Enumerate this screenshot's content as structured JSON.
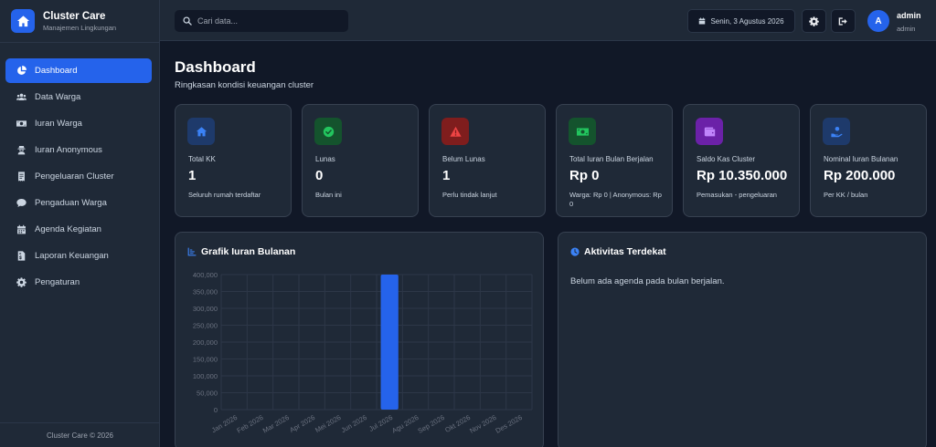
{
  "brand": {
    "name": "Cluster Care",
    "subtitle": "Manajemen Lingkungan"
  },
  "sidebar": {
    "items": [
      {
        "label": "Dashboard",
        "icon": "chart-pie-icon"
      },
      {
        "label": "Data Warga",
        "icon": "users-icon"
      },
      {
        "label": "Iuran Warga",
        "icon": "money-bill-icon"
      },
      {
        "label": "Iuran Anonymous",
        "icon": "user-secret-icon"
      },
      {
        "label": "Pengeluaran Cluster",
        "icon": "receipt-icon"
      },
      {
        "label": "Pengaduan Warga",
        "icon": "comment-icon"
      },
      {
        "label": "Agenda Kegiatan",
        "icon": "calendar-icon"
      },
      {
        "label": "Laporan Keuangan",
        "icon": "file-invoice-icon"
      },
      {
        "label": "Pengaturan",
        "icon": "cog-icon"
      }
    ],
    "active_index": 0,
    "footer": "Cluster Care © 2026"
  },
  "topbar": {
    "search_placeholder": "Cari data...",
    "date": "Senin, 3 Agustus 2026",
    "user_initial": "A",
    "user_name": "admin",
    "user_role": "admin"
  },
  "page": {
    "title": "Dashboard",
    "subtitle": "Ringkasan kondisi keuangan cluster"
  },
  "cards": [
    {
      "label": "Total KK",
      "value": "1",
      "note": "Seluruh rumah terdaftar",
      "icon": "home-icon",
      "accent": "#2563eb",
      "bg": "#1e3a6b"
    },
    {
      "label": "Lunas",
      "value": "0",
      "note": "Bulan ini",
      "icon": "check-circle-icon",
      "accent": "#22c55e",
      "bg": "#14532d"
    },
    {
      "label": "Belum Lunas",
      "value": "1",
      "note": "Perlu tindak lanjut",
      "icon": "warning-icon",
      "accent": "#ef4444",
      "bg": "#7f1d1d"
    },
    {
      "label": "Total Iuran Bulan Berjalan",
      "value": "Rp 0",
      "note": "Warga: Rp 0 | Anonymous: Rp 0",
      "icon": "money-icon",
      "accent": "#22c55e",
      "bg": "#14532d"
    },
    {
      "label": "Saldo Kas Cluster",
      "value": "Rp 10.350.000",
      "note": "Pemasukan - pengeluaran",
      "icon": "wallet-icon",
      "accent": "#c084fc",
      "bg": "#6b21a8"
    },
    {
      "label": "Nominal Iuran Bulanan",
      "value": "Rp 200.000",
      "note": "Per KK / bulan",
      "icon": "hand-coin-icon",
      "accent": "#3b82f6",
      "bg": "#1e3a6b"
    }
  ],
  "chart_panel": {
    "title": "Grafik Iuran Bulanan",
    "icon": "chart-bar-icon"
  },
  "activity_panel": {
    "title": "Aktivitas Terdekat",
    "icon": "clock-icon",
    "empty_text": "Belum ada agenda pada bulan berjalan."
  },
  "chart_data": {
    "type": "bar",
    "categories": [
      "Jan 2026",
      "Feb 2026",
      "Mar 2026",
      "Apr 2026",
      "Mei 2026",
      "Jun 2026",
      "Jul 2026",
      "Agu 2026",
      "Sep 2026",
      "Okt 2026",
      "Nov 2026",
      "Des 2026"
    ],
    "values": [
      0,
      0,
      0,
      0,
      0,
      0,
      400000,
      0,
      0,
      0,
      0,
      0
    ],
    "y_ticks": [
      "0",
      "50,000",
      "100,000",
      "150,000",
      "200,000",
      "250,000",
      "300,000",
      "350,000",
      "400,000"
    ],
    "ylim": [
      0,
      400000
    ],
    "bar_color": "#2563eb",
    "grid": true,
    "legend": "none"
  }
}
